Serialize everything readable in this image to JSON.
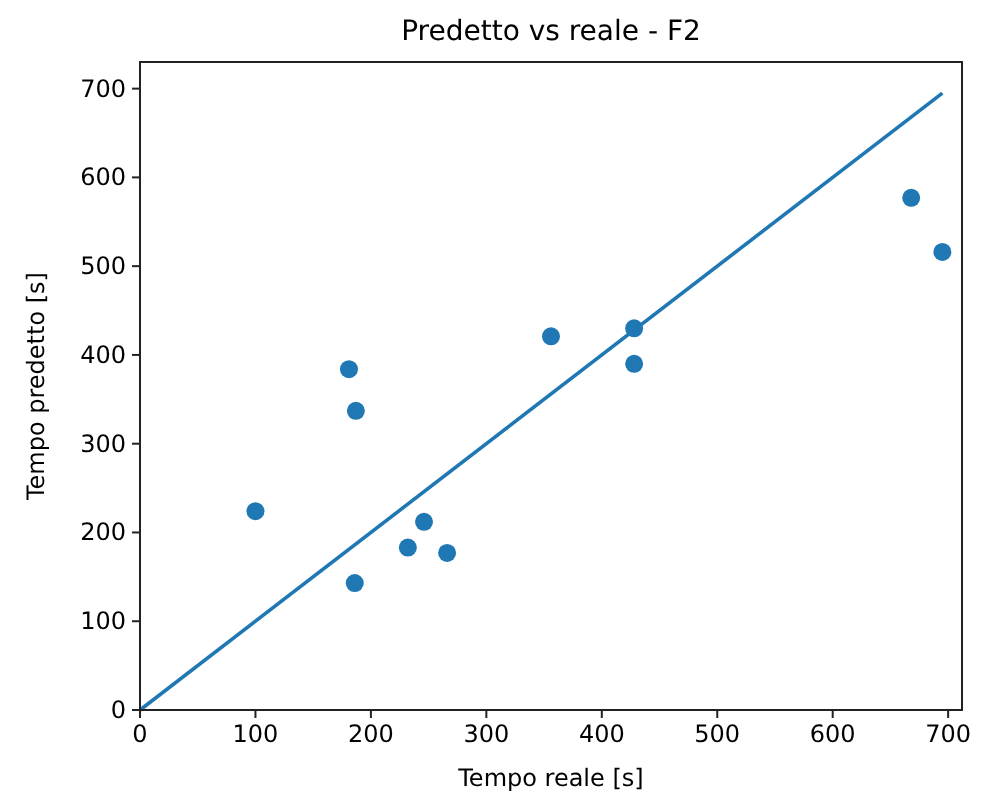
{
  "chart_data": {
    "type": "scatter",
    "title": "Predetto vs reale - F2",
    "xlabel": "Tempo reale [s]",
    "ylabel": "Tempo predetto [s]",
    "xlim": [
      0,
      712
    ],
    "ylim": [
      0,
      730
    ],
    "xticks": [
      0,
      100,
      200,
      300,
      400,
      500,
      600,
      700
    ],
    "yticks": [
      0,
      100,
      200,
      300,
      400,
      500,
      600,
      700
    ],
    "grid": false,
    "marker": "circle",
    "series": [
      {
        "color": "#1f77b4",
        "x": [
          100,
          181,
          187,
          186,
          232,
          246,
          266,
          356,
          428,
          428,
          668,
          695
        ],
        "values": [
          224,
          384,
          337,
          143,
          183,
          212,
          177,
          421,
          430,
          390,
          577,
          516
        ]
      },
      {
        "type": "line",
        "color": "#1f77b4",
        "x": [
          0,
          695
        ],
        "values": [
          0,
          695
        ],
        "line_style": "solid",
        "marker": "none"
      }
    ]
  }
}
